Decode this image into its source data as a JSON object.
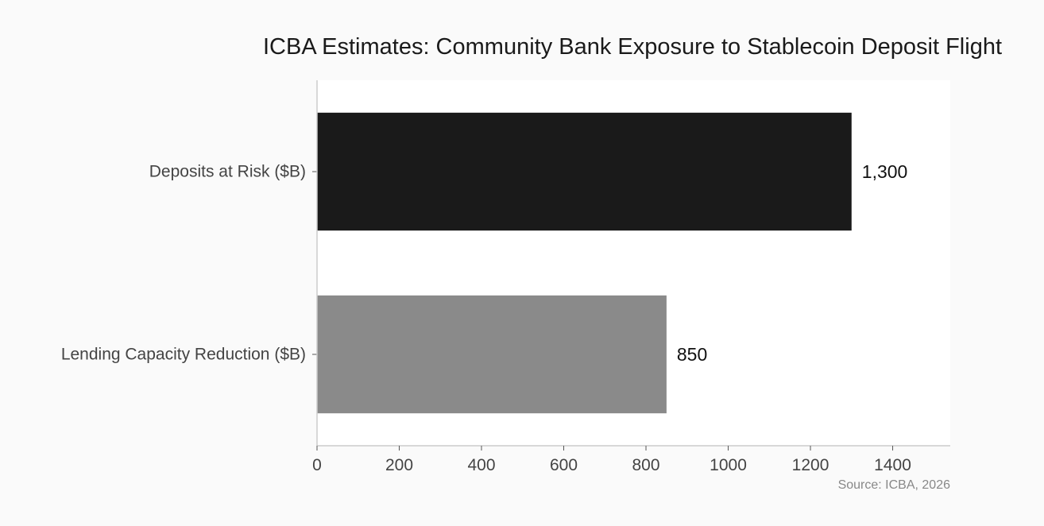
{
  "chart_data": {
    "type": "bar",
    "orientation": "horizontal",
    "title": "ICBA Estimates: Community Bank Exposure to Stablecoin Deposit Flight",
    "categories": [
      "Deposits at Risk ($B)",
      "Lending Capacity Reduction ($B)"
    ],
    "values": [
      1300,
      850
    ],
    "value_labels": [
      "1,300",
      "850"
    ],
    "bar_colors": [
      "#1a1a1a",
      "#8a8a8a"
    ],
    "xlim": [
      0,
      1540
    ],
    "x_ticks": [
      0,
      200,
      400,
      600,
      800,
      1000,
      1200,
      1400
    ],
    "x_tick_labels": [
      "0",
      "200",
      "400",
      "600",
      "800",
      "1000",
      "1200",
      "1400"
    ],
    "xlabel": "",
    "ylabel": "",
    "grid": false,
    "legend": "none",
    "source": "Source: ICBA, 2026"
  }
}
